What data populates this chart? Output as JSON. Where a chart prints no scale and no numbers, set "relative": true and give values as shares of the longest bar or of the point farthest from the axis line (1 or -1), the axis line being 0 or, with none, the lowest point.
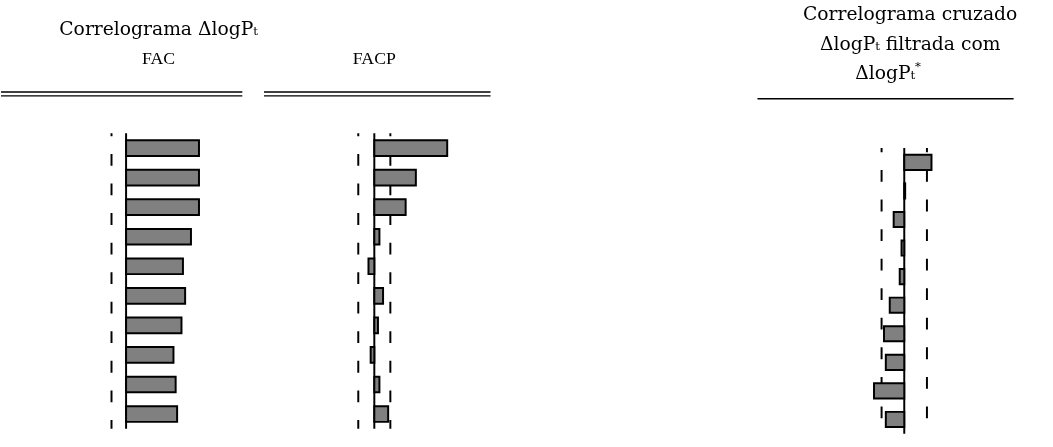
{
  "chart_data": [
    {
      "type": "bar",
      "orientation": "horizontal",
      "relative": true,
      "title": "Correlograma ΔlogPₜ",
      "subtitle": "FAC",
      "categories": [
        null,
        null,
        null,
        null,
        null,
        null,
        null,
        null,
        null,
        null
      ],
      "series": [
        {
          "color": "#808080",
          "values": [
            1,
            1,
            1,
            0.89,
            0.78,
            0.81,
            0.76,
            0.65,
            0.68,
            0.7
          ]
        }
      ],
      "ref_lines": [
        {
          "axis": "x",
          "value": -0.2,
          "line_style": "dashed"
        }
      ]
    },
    {
      "type": "bar",
      "orientation": "horizontal",
      "relative": true,
      "subtitle": "FACP",
      "categories": [
        null,
        null,
        null,
        null,
        null,
        null,
        null,
        null,
        null,
        null
      ],
      "series": [
        {
          "color": "#808080",
          "values": [
            1,
            0.57,
            0.43,
            0.07,
            -0.08,
            0.12,
            0.05,
            -0.05,
            0.07,
            0.19
          ]
        }
      ],
      "ref_lines": [
        {
          "axis": "x",
          "value": -0.22,
          "line_style": "dashed"
        },
        {
          "axis": "x",
          "value": 0.22,
          "line_style": "dashed"
        }
      ]
    },
    {
      "type": "bar",
      "orientation": "horizontal",
      "relative": true,
      "title": "Correlograma cruzado\nΔlogPₜ  filtrada com\nΔlogPₜ$^{*}$",
      "categories": [
        null,
        null,
        null,
        null,
        null,
        null,
        null,
        null,
        null,
        null
      ],
      "series": [
        {
          "color": "#808080",
          "values": [
            0.9,
            0.03,
            -0.35,
            -0.09,
            -0.15,
            -0.48,
            -0.67,
            -0.61,
            -1,
            -0.61
          ]
        }
      ],
      "ref_lines": [
        {
          "axis": "x",
          "value": -0.75,
          "line_style": "dashed"
        },
        {
          "axis": "x",
          "value": 0.75,
          "line_style": "dashed"
        }
      ]
    }
  ]
}
